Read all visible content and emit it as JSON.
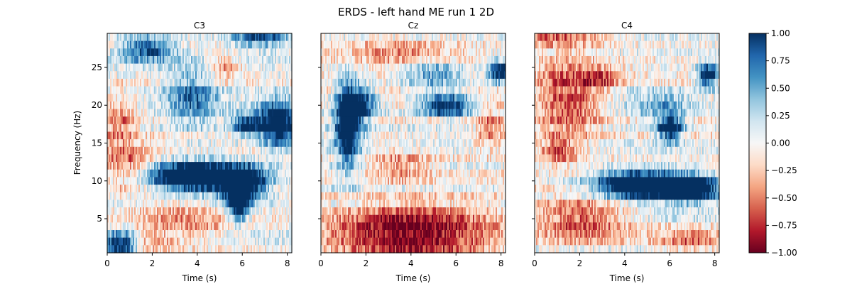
{
  "chart_data": {
    "type": "heatmap",
    "title": "ERDS - left hand ME run 1 2D",
    "colormap": [
      "#67001f",
      "#b2182b",
      "#d6604d",
      "#f4a582",
      "#fddbc7",
      "#f7f7f7",
      "#d1e5f0",
      "#92c5de",
      "#4393c3",
      "#2166ac",
      "#053061"
    ],
    "colorbar": {
      "vmin": -1.0,
      "vmax": 1.0,
      "ticks": [
        "1.00",
        "0.75",
        "0.50",
        "0.25",
        "0.00",
        "−0.25",
        "−0.50",
        "−0.75",
        "−1.00"
      ]
    },
    "xlabel": "Time (s)",
    "ylabel": "Frequency (Hz)",
    "xlim": [
      0,
      8.2
    ],
    "ylim": [
      0.5,
      29.5
    ],
    "xticks": [
      "0",
      "2",
      "4",
      "6",
      "8"
    ],
    "yticks": [
      "5",
      "10",
      "15",
      "20",
      "25"
    ],
    "panels": [
      {
        "name": "C3",
        "blobs": [
          {
            "t": 3.9,
            "f": 10.5,
            "st": 1.3,
            "sf": 1.4,
            "a": 1.8
          },
          {
            "t": 6.0,
            "f": 9.5,
            "st": 0.7,
            "sf": 1.6,
            "a": 1.6
          },
          {
            "t": 5.8,
            "f": 6.5,
            "st": 0.3,
            "sf": 1.5,
            "a": 1.2
          },
          {
            "t": 7.6,
            "f": 17.5,
            "st": 0.6,
            "sf": 2.0,
            "a": 1.4
          },
          {
            "t": 6.2,
            "f": 17.5,
            "st": 0.5,
            "sf": 1.0,
            "a": 1.0
          },
          {
            "t": 3.8,
            "f": 21.0,
            "st": 0.8,
            "sf": 2.5,
            "a": 0.7
          },
          {
            "t": 1.8,
            "f": 27.5,
            "st": 0.8,
            "sf": 1.2,
            "a": 0.9
          },
          {
            "t": 6.8,
            "f": 29.0,
            "st": 0.9,
            "sf": 1.0,
            "a": 0.9
          },
          {
            "t": 0.6,
            "f": 1.5,
            "st": 0.5,
            "sf": 1.2,
            "a": 1.2
          },
          {
            "t": 0.8,
            "f": 12.0,
            "st": 0.8,
            "sf": 2.0,
            "a": -0.5
          },
          {
            "t": 0.5,
            "f": 18.0,
            "st": 0.6,
            "sf": 2.5,
            "a": -0.5
          },
          {
            "t": 3.5,
            "f": 4.5,
            "st": 1.5,
            "sf": 2.0,
            "a": -0.4
          },
          {
            "t": 5.2,
            "f": 25.0,
            "st": 0.5,
            "sf": 1.0,
            "a": -0.5
          },
          {
            "t": 2.0,
            "f": 2.0,
            "st": 0.8,
            "sf": 0.8,
            "a": -0.4
          }
        ]
      },
      {
        "name": "Cz",
        "blobs": [
          {
            "t": 1.2,
            "f": 17.5,
            "st": 0.4,
            "sf": 4.0,
            "a": 1.4
          },
          {
            "t": 1.8,
            "f": 20.0,
            "st": 0.5,
            "sf": 1.5,
            "a": 1.0
          },
          {
            "t": 5.6,
            "f": 20.0,
            "st": 0.8,
            "sf": 1.0,
            "a": 1.2
          },
          {
            "t": 8.0,
            "f": 24.5,
            "st": 0.4,
            "sf": 1.0,
            "a": 1.3
          },
          {
            "t": 5.0,
            "f": 24.0,
            "st": 1.0,
            "sf": 1.5,
            "a": 0.6
          },
          {
            "t": 4.0,
            "f": 4.0,
            "st": 2.5,
            "sf": 2.0,
            "a": -0.9
          },
          {
            "t": 4.0,
            "f": 1.0,
            "st": 2.5,
            "sf": 1.0,
            "a": -0.5
          },
          {
            "t": 3.5,
            "f": 27.0,
            "st": 2.0,
            "sf": 1.0,
            "a": -0.5
          },
          {
            "t": 7.5,
            "f": 17.0,
            "st": 0.5,
            "sf": 2.0,
            "a": -0.5
          },
          {
            "t": 3.5,
            "f": 12.0,
            "st": 1.0,
            "sf": 1.5,
            "a": -0.4
          }
        ]
      },
      {
        "name": "C4",
        "blobs": [
          {
            "t": 4.5,
            "f": 9.5,
            "st": 1.3,
            "sf": 1.3,
            "a": 1.6
          },
          {
            "t": 6.8,
            "f": 9.0,
            "st": 1.0,
            "sf": 1.2,
            "a": 1.6
          },
          {
            "t": 6.0,
            "f": 17.0,
            "st": 0.4,
            "sf": 1.2,
            "a": 1.3
          },
          {
            "t": 7.7,
            "f": 24.0,
            "st": 0.3,
            "sf": 1.0,
            "a": 1.4
          },
          {
            "t": 5.5,
            "f": 20.0,
            "st": 1.0,
            "sf": 1.2,
            "a": 0.5
          },
          {
            "t": 1.5,
            "f": 21.0,
            "st": 1.0,
            "sf": 4.0,
            "a": -0.7
          },
          {
            "t": 3.0,
            "f": 23.5,
            "st": 0.6,
            "sf": 1.0,
            "a": -0.5
          },
          {
            "t": 2.0,
            "f": 5.0,
            "st": 1.5,
            "sf": 2.0,
            "a": -0.7
          },
          {
            "t": 1.0,
            "f": 14.0,
            "st": 0.6,
            "sf": 1.0,
            "a": -0.6
          },
          {
            "t": 7.0,
            "f": 2.0,
            "st": 1.0,
            "sf": 1.0,
            "a": -0.5
          },
          {
            "t": 1.0,
            "f": 29.0,
            "st": 1.5,
            "sf": 0.8,
            "a": -0.6
          }
        ]
      }
    ]
  }
}
